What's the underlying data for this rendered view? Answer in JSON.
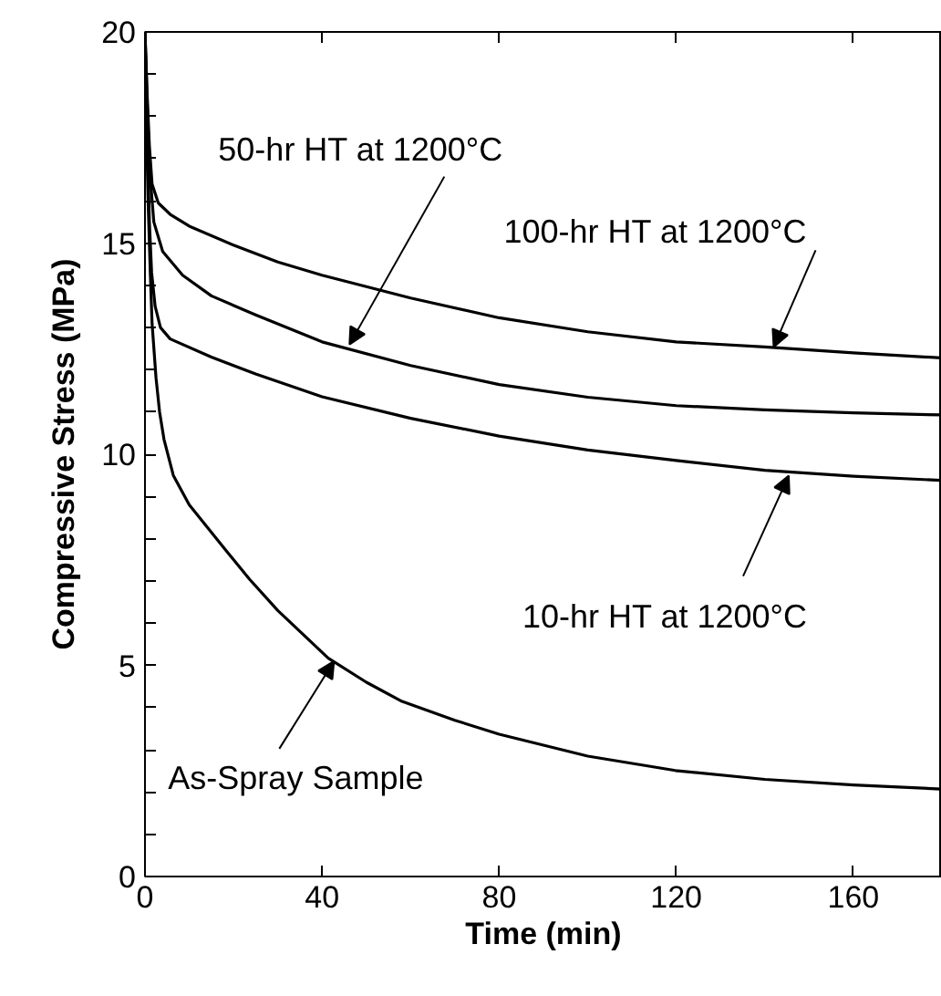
{
  "chart_data": {
    "type": "line",
    "xlabel": "Time (min)",
    "ylabel": "Compressive Stress (MPa)",
    "xlim": [
      0,
      180
    ],
    "ylim": [
      0,
      20
    ],
    "xticks": [
      0,
      40,
      80,
      120,
      160
    ],
    "yticks": [
      0,
      {
        "value": 1,
        "label": null
      },
      {
        "value": 2,
        "label": null
      },
      {
        "value": 3,
        "label": null
      },
      {
        "value": 4,
        "label": null
      },
      5,
      {
        "value": 6,
        "label": null
      },
      {
        "value": 7,
        "label": null
      },
      {
        "value": 8,
        "label": null
      },
      {
        "value": 9,
        "label": null
      },
      10,
      {
        "value": 11,
        "label": null
      },
      {
        "value": 12,
        "label": null
      },
      {
        "value": 13,
        "label": null
      },
      {
        "value": 14,
        "label": null
      },
      15,
      {
        "value": 16,
        "label": null
      },
      {
        "value": 17,
        "label": null
      },
      {
        "value": 18,
        "label": null
      },
      {
        "value": 19,
        "label": null
      },
      20
    ],
    "grid": false,
    "marker": "none",
    "line_style": "solid",
    "series": [
      {
        "color": "#000000",
        "x": [
          0,
          0.5,
          1,
          1.6,
          3,
          5.7,
          10,
          20,
          30,
          40,
          60,
          80,
          100,
          120,
          140,
          160,
          180
        ],
        "values": [
          20,
          18.5,
          17.3,
          16.4,
          15.95,
          15.68,
          15.4,
          14.95,
          14.55,
          14.24,
          13.7,
          13.23,
          12.9,
          12.66,
          12.54,
          12.4,
          12.28
        ]
      },
      {
        "color": "#000000",
        "x": [
          0,
          0.5,
          1,
          2,
          4,
          8.5,
          15,
          25,
          40,
          60,
          80,
          100,
          120,
          140,
          160,
          180
        ],
        "values": [
          20,
          18.3,
          16.8,
          15.5,
          14.8,
          14.24,
          13.75,
          13.3,
          12.66,
          12.1,
          11.65,
          11.35,
          11.15,
          11.05,
          10.98,
          10.93
        ]
      },
      {
        "color": "#000000",
        "x": [
          0,
          0.5,
          1,
          1.5,
          2.3,
          3.5,
          5.7,
          15,
          25,
          40,
          60,
          80,
          100,
          120,
          140,
          160,
          180
        ],
        "values": [
          20,
          17.5,
          15.5,
          14.3,
          13.5,
          13.0,
          12.73,
          12.3,
          11.9,
          11.36,
          10.85,
          10.43,
          10.1,
          9.85,
          9.62,
          9.48,
          9.38
        ]
      },
      {
        "color": "#000000",
        "x": [
          0,
          0.3,
          0.7,
          1.2,
          1.6,
          2.5,
          3.3,
          4.3,
          6.4,
          10,
          18,
          23.6,
          30,
          41.4,
          50,
          57.8,
          70,
          80,
          100,
          119.8,
          140,
          160,
          180
        ],
        "values": [
          20,
          18,
          16,
          14.3,
          13.1,
          11.8,
          11.0,
          10.35,
          9.5,
          8.8,
          7.76,
          7.04,
          6.3,
          5.17,
          4.6,
          4.16,
          3.7,
          3.37,
          2.85,
          2.51,
          2.3,
          2.17,
          2.07
        ]
      }
    ],
    "annotations": [
      {
        "text": "50-hr HT at 1200°C",
        "x": 46.2,
        "y": 12.6
      },
      {
        "text": "100-hr HT at 1200°C",
        "x": 142,
        "y": 12.54
      },
      {
        "text": "10-hr HT at 1200°C",
        "x": 145.4,
        "y": 9.49
      },
      {
        "text": "As-Spray Sample",
        "x": 42.7,
        "y": 5.1
      }
    ]
  }
}
